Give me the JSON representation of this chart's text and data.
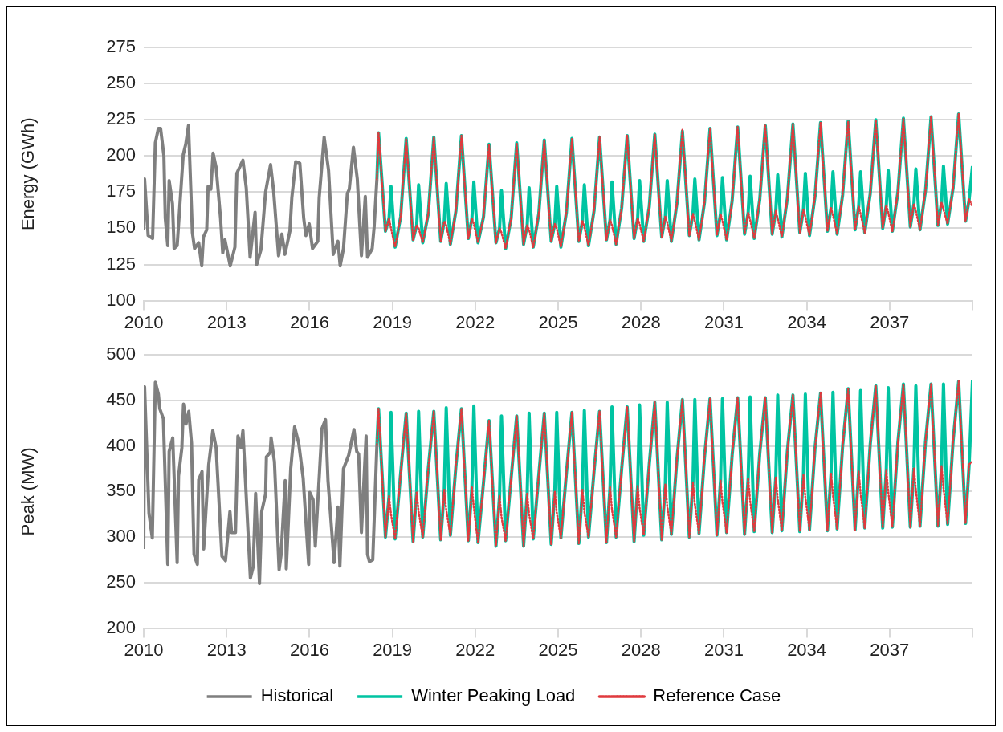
{
  "chart_data": [
    {
      "type": "line",
      "ylabel": "Energy (GWh)",
      "xlim": [
        2010,
        2040
      ],
      "xticks": [
        2010,
        2013,
        2016,
        2019,
        2022,
        2025,
        2028,
        2031,
        2034,
        2037,
        {
          "value": 2040,
          "label": null
        }
      ],
      "ylim": [
        100,
        275
      ],
      "yticks": [
        100,
        125,
        150,
        175,
        200,
        225,
        250,
        275
      ],
      "grid": "y",
      "legend": false,
      "series": [
        {
          "color": "#7f7f7f",
          "line_style": "solid",
          "x": [
            2010,
            2010.03,
            2010.16,
            2010.32,
            2010.42,
            2010.53,
            2010.61,
            2010.73,
            2010.78,
            2010.87,
            2010.92,
            2011.04,
            2011.1,
            2011.21,
            2011.43,
            2011.52,
            2011.62,
            2011.76,
            2011.84,
            2011.99,
            2012.1,
            2012.16,
            2012.28,
            2012.33,
            2012.43,
            2012.51,
            2012.62,
            2012.78,
            2012.86,
            2012.94,
            2013.13,
            2013.3,
            2013.37,
            2013.59,
            2013.71,
            2013.85,
            2014.03,
            2014.09,
            2014.24,
            2014.41,
            2014.59,
            2014.7,
            2014.88,
            2015,
            2015.11,
            2015.29,
            2015.36,
            2015.5,
            2015.65,
            2015.79,
            2015.87,
            2015.99,
            2016.11,
            2016.3,
            2016.35,
            2016.53,
            2016.69,
            2016.86,
            2017.03,
            2017.11,
            2017.23,
            2017.37,
            2017.44,
            2017.59,
            2017.73,
            2017.88,
            2018.02,
            2018.1,
            2018.27,
            2018.34,
            2018.44
          ],
          "values": [
            149,
            184,
            145,
            143,
            209,
            219,
            219,
            200,
            157,
            138,
            183,
            167,
            136,
            138,
            201,
            208,
            221,
            147,
            136,
            140,
            124,
            144,
            149,
            179,
            177,
            202,
            192,
            157,
            133,
            142,
            124,
            137,
            188,
            197,
            178,
            130,
            161,
            125,
            135,
            175,
            194,
            176,
            131,
            146,
            132,
            148,
            171,
            196,
            195,
            157,
            145,
            153,
            136,
            141,
            171,
            213,
            190,
            132,
            141,
            124,
            136,
            174,
            177,
            206,
            184,
            131,
            172,
            130,
            136,
            151,
            184
          ]
        },
        {
          "color": "#00c4a2",
          "line_style": "solid",
          "x": [
            2018.44,
            2018.5,
            2018.75,
            2018.88,
            2018.95,
            2019.1,
            2019.3,
            2019.5,
            2019.75,
            2019.88,
            2019.95,
            2020.1,
            2020.3,
            2020.5,
            2020.75,
            2020.88,
            2020.95,
            2021.1,
            2021.3,
            2021.5,
            2021.75,
            2021.88,
            2021.95,
            2022.1,
            2022.3,
            2022.5,
            2022.75,
            2022.88,
            2022.95,
            2023.1,
            2023.3,
            2023.5,
            2023.75,
            2023.88,
            2023.95,
            2024.1,
            2024.3,
            2024.5,
            2024.75,
            2024.88,
            2024.95,
            2025.1,
            2025.3,
            2025.5,
            2025.75,
            2025.88,
            2025.95,
            2026.1,
            2026.3,
            2026.5,
            2026.75,
            2026.88,
            2026.95,
            2027.1,
            2027.3,
            2027.5,
            2027.75,
            2027.88,
            2027.95,
            2028.1,
            2028.3,
            2028.5,
            2028.75,
            2028.88,
            2028.95,
            2029.1,
            2029.3,
            2029.5,
            2029.75,
            2029.88,
            2029.95,
            2030.1,
            2030.3,
            2030.5,
            2030.75,
            2030.88,
            2030.95,
            2031.1,
            2031.3,
            2031.5,
            2031.75,
            2031.88,
            2031.95,
            2032.1,
            2032.3,
            2032.5,
            2032.75,
            2032.88,
            2032.95,
            2033.1,
            2033.3,
            2033.5,
            2033.75,
            2033.88,
            2033.95,
            2034.1,
            2034.3,
            2034.5,
            2034.75,
            2034.88,
            2034.95,
            2035.1,
            2035.3,
            2035.5,
            2035.75,
            2035.88,
            2035.95,
            2036.1,
            2036.3,
            2036.5,
            2036.75,
            2036.88,
            2036.95,
            2037.1,
            2037.3,
            2037.5,
            2037.75,
            2037.88,
            2037.95,
            2038.1,
            2038.3,
            2038.5,
            2038.75,
            2038.88,
            2038.95,
            2039.1,
            2039.3,
            2039.5,
            2039.75,
            2039.88,
            2040
          ],
          "values": [
            184,
            216,
            148,
            157,
            179,
            137,
            158,
            212,
            142,
            152,
            180,
            140,
            160,
            213,
            141,
            155,
            181,
            139,
            162,
            214,
            143,
            157,
            182,
            140,
            158,
            208,
            140,
            150,
            176,
            136,
            157,
            209,
            139,
            152,
            178,
            137,
            160,
            211,
            141,
            153,
            179,
            137,
            161,
            212,
            141,
            155,
            180,
            138,
            162,
            213,
            142,
            156,
            182,
            139,
            164,
            214,
            143,
            157,
            183,
            141,
            165,
            215,
            144,
            158,
            183,
            141,
            167,
            217,
            145,
            160,
            184,
            142,
            168,
            219,
            145,
            160,
            185,
            142,
            169,
            220,
            146,
            161,
            186,
            143,
            170,
            221,
            146,
            162,
            187,
            144,
            171,
            222,
            147,
            163,
            188,
            145,
            172,
            223,
            148,
            164,
            189,
            146,
            173,
            224,
            149,
            165,
            189,
            147,
            174,
            225,
            150,
            166,
            190,
            148,
            175,
            226,
            151,
            167,
            191,
            149,
            176,
            227,
            152,
            168,
            193,
            153,
            178,
            229,
            155,
            170,
            193
          ]
        },
        {
          "color": "#e03a3e",
          "line_style": "dotted",
          "x": [
            2018.44,
            2018.5,
            2018.75,
            2018.88,
            2018.95,
            2019.1,
            2019.3,
            2019.5,
            2019.75,
            2019.88,
            2019.95,
            2020.1,
            2020.3,
            2020.5,
            2020.75,
            2020.88,
            2020.95,
            2021.1,
            2021.3,
            2021.5,
            2021.75,
            2021.88,
            2021.95,
            2022.1,
            2022.3,
            2022.5,
            2022.75,
            2022.88,
            2022.95,
            2023.1,
            2023.3,
            2023.5,
            2023.75,
            2023.88,
            2023.95,
            2024.1,
            2024.3,
            2024.5,
            2024.75,
            2024.88,
            2024.95,
            2025.1,
            2025.3,
            2025.5,
            2025.75,
            2025.88,
            2025.95,
            2026.1,
            2026.3,
            2026.5,
            2026.75,
            2026.88,
            2026.95,
            2027.1,
            2027.3,
            2027.5,
            2027.75,
            2027.88,
            2027.95,
            2028.1,
            2028.3,
            2028.5,
            2028.75,
            2028.88,
            2028.95,
            2029.1,
            2029.3,
            2029.5,
            2029.75,
            2029.88,
            2029.95,
            2030.1,
            2030.3,
            2030.5,
            2030.75,
            2030.88,
            2030.95,
            2031.1,
            2031.3,
            2031.5,
            2031.75,
            2031.88,
            2031.95,
            2032.1,
            2032.3,
            2032.5,
            2032.75,
            2032.88,
            2032.95,
            2033.1,
            2033.3,
            2033.5,
            2033.75,
            2033.88,
            2033.95,
            2034.1,
            2034.3,
            2034.5,
            2034.75,
            2034.88,
            2034.95,
            2035.1,
            2035.3,
            2035.5,
            2035.75,
            2035.88,
            2035.95,
            2036.1,
            2036.3,
            2036.5,
            2036.75,
            2036.88,
            2036.95,
            2037.1,
            2037.3,
            2037.5,
            2037.75,
            2037.88,
            2037.95,
            2038.1,
            2038.3,
            2038.5,
            2038.75,
            2038.88,
            2038.95,
            2039.1,
            2039.3,
            2039.5,
            2039.75,
            2039.88,
            2040
          ],
          "values": [
            184,
            216,
            148,
            157,
            150,
            137,
            158,
            212,
            142,
            152,
            150,
            140,
            160,
            213,
            141,
            155,
            152,
            139,
            162,
            214,
            143,
            157,
            153,
            140,
            158,
            208,
            140,
            150,
            147,
            136,
            157,
            209,
            139,
            152,
            149,
            137,
            160,
            211,
            141,
            153,
            150,
            137,
            161,
            212,
            141,
            155,
            151,
            138,
            162,
            213,
            142,
            156,
            152,
            139,
            164,
            214,
            143,
            157,
            153,
            141,
            165,
            215,
            144,
            158,
            154,
            141,
            167,
            218,
            145,
            160,
            155,
            142,
            168,
            219,
            145,
            160,
            155,
            142,
            169,
            220,
            146,
            161,
            156,
            143,
            170,
            221,
            146,
            162,
            157,
            144,
            171,
            222,
            147,
            163,
            158,
            145,
            172,
            223,
            148,
            164,
            159,
            146,
            173,
            224,
            149,
            165,
            160,
            147,
            174,
            225,
            150,
            166,
            161,
            148,
            175,
            226,
            151,
            167,
            162,
            149,
            176,
            227,
            152,
            168,
            163,
            153,
            178,
            229,
            155,
            170,
            165
          ]
        }
      ]
    },
    {
      "type": "line",
      "ylabel": "Peak (MW)",
      "xlim": [
        2010,
        2040
      ],
      "xticks": [
        2010,
        2013,
        2016,
        2019,
        2022,
        2025,
        2028,
        2031,
        2034,
        2037,
        {
          "value": 2040,
          "label": null
        }
      ],
      "ylim": [
        200,
        500
      ],
      "yticks": [
        200,
        250,
        300,
        350,
        400,
        450,
        500
      ],
      "grid": "y",
      "legend": "bottom",
      "series": [
        {
          "name": "Historical",
          "color": "#7f7f7f",
          "line_style": "solid",
          "x": [
            2010,
            2010.03,
            2010.19,
            2010.31,
            2010.42,
            2010.53,
            2010.58,
            2010.71,
            2010.87,
            2010.92,
            2011.05,
            2011.21,
            2011.26,
            2011.38,
            2011.44,
            2011.53,
            2011.63,
            2011.73,
            2011.82,
            2011.94,
            2011.99,
            2012.11,
            2012.17,
            2012.35,
            2012.5,
            2012.62,
            2012.83,
            2012.96,
            2013.12,
            2013.18,
            2013.32,
            2013.41,
            2013.52,
            2013.59,
            2013.86,
            2013.96,
            2014.05,
            2014.19,
            2014.27,
            2014.41,
            2014.44,
            2014.58,
            2014.61,
            2014.73,
            2014.9,
            2014.97,
            2015.12,
            2015.16,
            2015.32,
            2015.46,
            2015.61,
            2015.77,
            2015.97,
            2016.01,
            2016.13,
            2016.21,
            2016.38,
            2016.45,
            2016.58,
            2016.67,
            2016.89,
            2017.03,
            2017.1,
            2017.23,
            2017.42,
            2017.61,
            2017.71,
            2017.78,
            2017.88,
            2018.05,
            2018.1,
            2018.17,
            2018.29,
            2018.39,
            2018.44
          ],
          "values": [
            287,
            465,
            326,
            299,
            470,
            457,
            441,
            430,
            270,
            394,
            409,
            272,
            367,
            398,
            446,
            424,
            438,
            403,
            281,
            270,
            363,
            372,
            287,
            379,
            417,
            398,
            279,
            274,
            328,
            305,
            305,
            411,
            398,
            417,
            255,
            267,
            348,
            249,
            328,
            347,
            388,
            393,
            409,
            383,
            264,
            280,
            362,
            265,
            375,
            421,
            403,
            365,
            270,
            349,
            341,
            290,
            381,
            419,
            429,
            362,
            272,
            333,
            268,
            375,
            390,
            418,
            394,
            391,
            305,
            411,
            281,
            273,
            275,
            359,
            401
          ]
        },
        {
          "name": "Winter Peaking Load",
          "color": "#00c4a2",
          "line_style": "solid",
          "x": [
            2018.44,
            2018.5,
            2018.75,
            2018.88,
            2018.95,
            2019.1,
            2019.3,
            2019.5,
            2019.75,
            2019.88,
            2019.95,
            2020.1,
            2020.3,
            2020.5,
            2020.75,
            2020.88,
            2020.95,
            2021.1,
            2021.3,
            2021.5,
            2021.75,
            2021.88,
            2021.95,
            2022.1,
            2022.3,
            2022.5,
            2022.75,
            2022.88,
            2022.95,
            2023.1,
            2023.3,
            2023.5,
            2023.75,
            2023.88,
            2023.95,
            2024.1,
            2024.3,
            2024.5,
            2024.75,
            2024.88,
            2024.95,
            2025.1,
            2025.3,
            2025.5,
            2025.75,
            2025.88,
            2025.95,
            2026.1,
            2026.3,
            2026.5,
            2026.75,
            2026.88,
            2026.95,
            2027.1,
            2027.3,
            2027.5,
            2027.75,
            2027.88,
            2027.95,
            2028.1,
            2028.3,
            2028.5,
            2028.75,
            2028.88,
            2028.95,
            2029.1,
            2029.3,
            2029.5,
            2029.75,
            2029.88,
            2029.95,
            2030.1,
            2030.3,
            2030.5,
            2030.75,
            2030.88,
            2030.95,
            2031.1,
            2031.3,
            2031.5,
            2031.75,
            2031.88,
            2031.95,
            2032.1,
            2032.3,
            2032.5,
            2032.75,
            2032.88,
            2032.95,
            2033.1,
            2033.3,
            2033.5,
            2033.75,
            2033.88,
            2033.95,
            2034.1,
            2034.3,
            2034.5,
            2034.75,
            2034.88,
            2034.95,
            2035.1,
            2035.3,
            2035.5,
            2035.75,
            2035.88,
            2035.95,
            2036.1,
            2036.3,
            2036.5,
            2036.75,
            2036.88,
            2036.95,
            2037.1,
            2037.3,
            2037.5,
            2037.75,
            2037.88,
            2037.95,
            2038.1,
            2038.3,
            2038.5,
            2038.75,
            2038.88,
            2038.95,
            2039.1,
            2039.3,
            2039.5,
            2039.75,
            2039.88,
            2040
          ],
          "values": [
            401,
            441,
            300,
            345,
            437,
            298,
            370,
            436,
            295,
            350,
            438,
            300,
            375,
            438,
            297,
            352,
            442,
            302,
            378,
            441,
            296,
            355,
            444,
            294,
            360,
            428,
            290,
            345,
            433,
            296,
            365,
            433,
            290,
            348,
            436,
            298,
            368,
            436,
            292,
            350,
            437,
            299,
            370,
            437,
            293,
            352,
            439,
            300,
            372,
            438,
            294,
            355,
            443,
            300,
            375,
            443,
            295,
            356,
            445,
            302,
            380,
            448,
            297,
            358,
            448,
            303,
            385,
            451,
            300,
            360,
            451,
            304,
            388,
            452,
            302,
            362,
            452,
            305,
            390,
            453,
            303,
            365,
            454,
            306,
            392,
            453,
            305,
            366,
            456,
            307,
            395,
            456,
            306,
            368,
            457,
            308,
            398,
            458,
            307,
            370,
            459,
            309,
            400,
            463,
            308,
            372,
            461,
            310,
            402,
            466,
            310,
            374,
            464,
            311,
            404,
            468,
            311,
            376,
            466,
            312,
            405,
            468,
            312,
            378,
            468,
            314,
            406,
            471,
            315,
            380,
            472
          ]
        },
        {
          "name": "Reference Case",
          "color": "#e03a3e",
          "line_style": "dotted",
          "x": [
            2018.44,
            2018.5,
            2018.75,
            2018.88,
            2018.95,
            2019.1,
            2019.3,
            2019.5,
            2019.75,
            2019.88,
            2019.95,
            2020.1,
            2020.3,
            2020.5,
            2020.75,
            2020.88,
            2020.95,
            2021.1,
            2021.3,
            2021.5,
            2021.75,
            2021.88,
            2021.95,
            2022.1,
            2022.3,
            2022.5,
            2022.75,
            2022.88,
            2022.95,
            2023.1,
            2023.3,
            2023.5,
            2023.75,
            2023.88,
            2023.95,
            2024.1,
            2024.3,
            2024.5,
            2024.75,
            2024.88,
            2024.95,
            2025.1,
            2025.3,
            2025.5,
            2025.75,
            2025.88,
            2025.95,
            2026.1,
            2026.3,
            2026.5,
            2026.75,
            2026.88,
            2026.95,
            2027.1,
            2027.3,
            2027.5,
            2027.75,
            2027.88,
            2027.95,
            2028.1,
            2028.3,
            2028.5,
            2028.75,
            2028.88,
            2028.95,
            2029.1,
            2029.3,
            2029.5,
            2029.75,
            2029.88,
            2029.95,
            2030.1,
            2030.3,
            2030.5,
            2030.75,
            2030.88,
            2030.95,
            2031.1,
            2031.3,
            2031.5,
            2031.75,
            2031.88,
            2031.95,
            2032.1,
            2032.3,
            2032.5,
            2032.75,
            2032.88,
            2032.95,
            2033.1,
            2033.3,
            2033.5,
            2033.75,
            2033.88,
            2033.95,
            2034.1,
            2034.3,
            2034.5,
            2034.75,
            2034.88,
            2034.95,
            2035.1,
            2035.3,
            2035.5,
            2035.75,
            2035.88,
            2035.95,
            2036.1,
            2036.3,
            2036.5,
            2036.75,
            2036.88,
            2036.95,
            2037.1,
            2037.3,
            2037.5,
            2037.75,
            2037.88,
            2037.95,
            2038.1,
            2038.3,
            2038.5,
            2038.75,
            2038.88,
            2038.95,
            2039.1,
            2039.3,
            2039.5,
            2039.75,
            2039.88,
            2040
          ],
          "values": [
            401,
            441,
            300,
            345,
            325,
            298,
            370,
            436,
            295,
            350,
            328,
            300,
            375,
            438,
            297,
            352,
            330,
            302,
            378,
            441,
            296,
            355,
            332,
            294,
            360,
            428,
            290,
            345,
            322,
            296,
            365,
            433,
            290,
            348,
            325,
            298,
            368,
            436,
            292,
            350,
            327,
            299,
            370,
            437,
            293,
            352,
            328,
            300,
            372,
            438,
            294,
            355,
            330,
            300,
            375,
            443,
            295,
            356,
            332,
            302,
            380,
            448,
            297,
            358,
            334,
            303,
            385,
            451,
            300,
            360,
            336,
            304,
            388,
            452,
            302,
            362,
            338,
            305,
            390,
            453,
            303,
            365,
            340,
            306,
            392,
            453,
            305,
            366,
            342,
            307,
            395,
            456,
            306,
            368,
            344,
            308,
            398,
            458,
            307,
            370,
            346,
            309,
            400,
            463,
            308,
            372,
            348,
            310,
            402,
            466,
            310,
            374,
            350,
            311,
            404,
            468,
            311,
            376,
            352,
            312,
            405,
            468,
            312,
            378,
            354,
            314,
            406,
            471,
            315,
            380,
            383
          ]
        }
      ]
    }
  ]
}
